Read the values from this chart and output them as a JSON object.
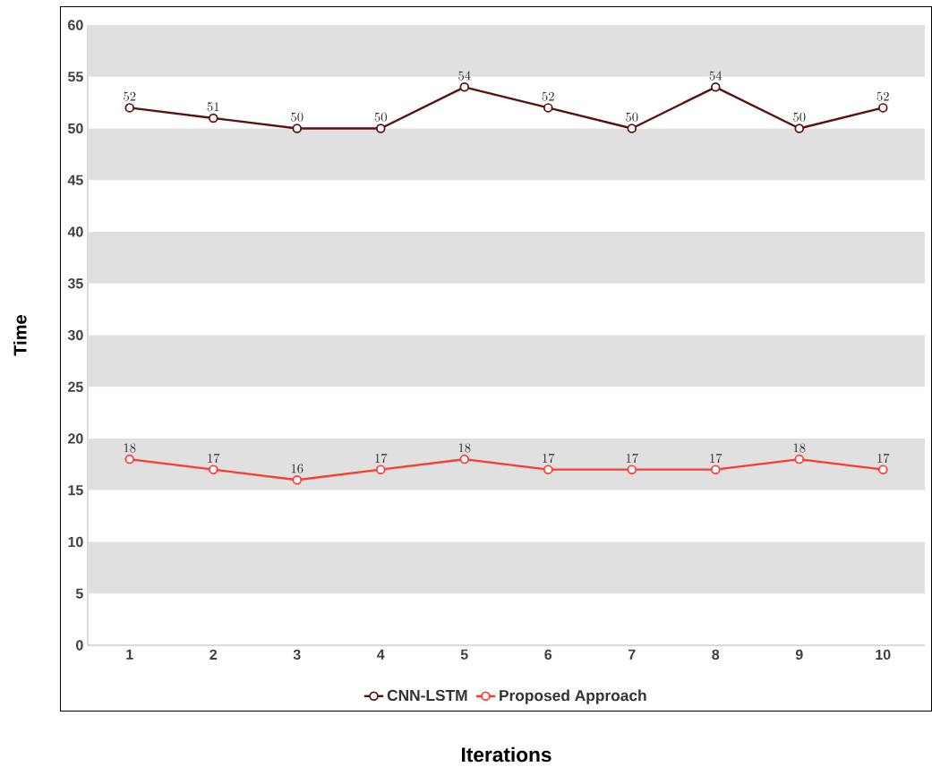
{
  "chart_data": {
    "type": "line",
    "xlabel": "Iterations",
    "ylabel": "Time",
    "categories": [
      "1",
      "2",
      "3",
      "4",
      "5",
      "6",
      "7",
      "8",
      "9",
      "10"
    ],
    "ylim": [
      0,
      60
    ],
    "yticks": [
      0,
      5,
      10,
      15,
      20,
      25,
      30,
      35,
      40,
      45,
      50,
      55,
      60
    ],
    "bands": [
      {
        "axis": "y",
        "from": 5,
        "to": 10,
        "color": "#e0e0e0"
      },
      {
        "axis": "y",
        "from": 15,
        "to": 20,
        "color": "#e0e0e0"
      },
      {
        "axis": "y",
        "from": 25,
        "to": 30,
        "color": "#e0e0e0"
      },
      {
        "axis": "y",
        "from": 35,
        "to": 40,
        "color": "#e0e0e0"
      },
      {
        "axis": "y",
        "from": 45,
        "to": 50,
        "color": "#e0e0e0"
      },
      {
        "axis": "y",
        "from": 55,
        "to": 60,
        "color": "#e0e0e0"
      }
    ],
    "legend": "bottom",
    "marker": "circle",
    "data_labels": true,
    "series": [
      {
        "name": "CNN-LSTM",
        "color": "#5c1010",
        "values": [
          52,
          51,
          50,
          50,
          54,
          52,
          50,
          54,
          50,
          52
        ]
      },
      {
        "name": "Proposed Approach",
        "color": "#ff3b2f",
        "values": [
          18,
          17,
          16,
          17,
          18,
          17,
          17,
          17,
          18,
          17
        ]
      }
    ]
  }
}
